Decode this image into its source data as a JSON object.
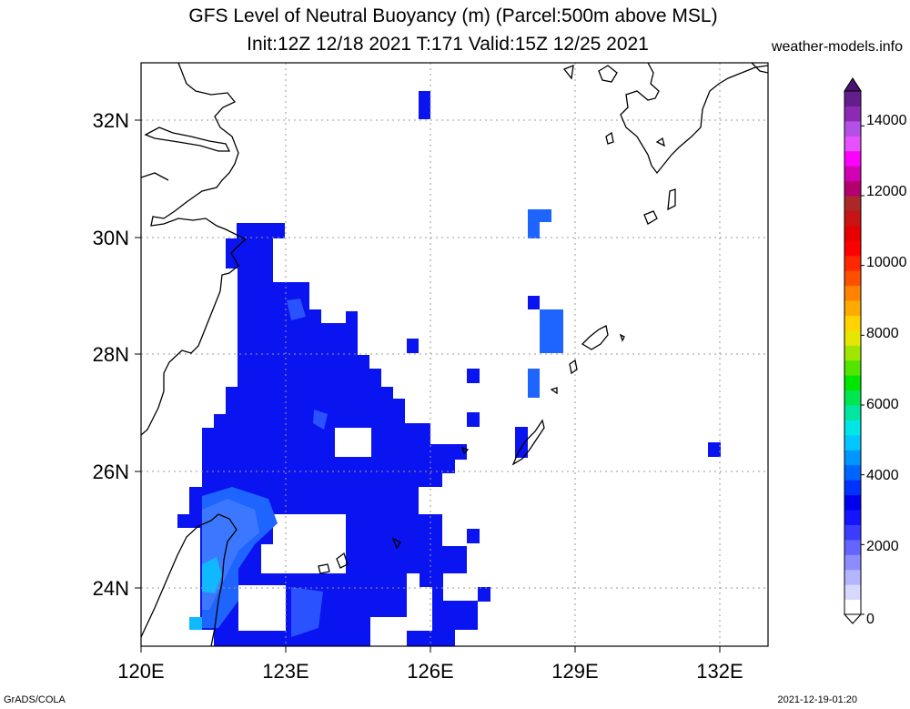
{
  "title": {
    "line1": "GFS Level of Neutral Buoyancy (m) (Parcel:500m above MSL)",
    "line2": "Init:12Z 12/18 2021 T:171 Valid:15Z 12/25 2021"
  },
  "site": "weather-models.info",
  "footer": {
    "left": "GrADS/COLA",
    "right": "2021-12-19-01:20"
  },
  "map": {
    "lon_range": [
      120,
      133
    ],
    "lat_range": [
      23,
      33
    ],
    "lat_labels": [
      "24N",
      "26N",
      "28N",
      "30N",
      "32N"
    ],
    "lon_labels": [
      "120E",
      "123E",
      "126E",
      "129E",
      "132E"
    ]
  },
  "colorbar": {
    "labels": [
      "0",
      "2000",
      "4000",
      "6000",
      "8000",
      "10000",
      "12000",
      "14000"
    ],
    "min": 0,
    "max": 15000,
    "colors": [
      "#ffffff",
      "#d8d8ff",
      "#b4b4ff",
      "#8c8cff",
      "#6464ff",
      "#3c3cff",
      "#1414ff",
      "#0000ee",
      "#0032ff",
      "#0064ff",
      "#0096ff",
      "#00c8ff",
      "#00e6e6",
      "#00e6a0",
      "#00e650",
      "#00e600",
      "#50e600",
      "#a0e600",
      "#e6e600",
      "#ffd200",
      "#ffaa00",
      "#ff8200",
      "#ff5000",
      "#ff2800",
      "#ff0000",
      "#e60000",
      "#c81414",
      "#aa2828",
      "#b4006e",
      "#d200b4",
      "#ff00ff",
      "#e650ff",
      "#b450e6",
      "#8c2ab4",
      "#641e8c"
    ]
  },
  "field_colors": {
    "main": "#0a14f0",
    "light": "#2a52ff",
    "mid": "#1e64ff",
    "cyan": "#10b8ff",
    "lightblue": "#3c78ff"
  }
}
